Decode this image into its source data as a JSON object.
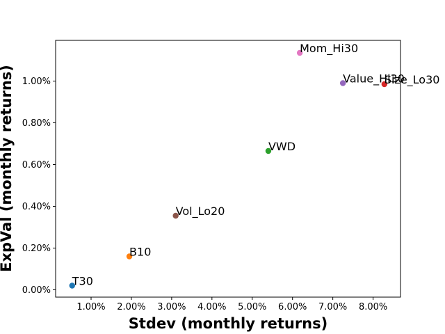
{
  "chart_data": {
    "type": "scatter",
    "title": "",
    "xlabel": "Stdev (monthly returns)",
    "ylabel": "ExpVal (monthly returns)",
    "xlim": [
      0.12,
      8.68
    ],
    "ylim": [
      -0.035,
      1.195
    ],
    "x_ticks": [
      1,
      2,
      3,
      4,
      5,
      6,
      7,
      8
    ],
    "x_tick_labels": [
      "1.00%",
      "2.00%",
      "3.00%",
      "4.00%",
      "5.00%",
      "6.00%",
      "7.00%",
      "8.00%"
    ],
    "y_ticks": [
      0,
      0.2,
      0.4,
      0.6,
      0.8,
      1.0
    ],
    "y_tick_labels": [
      "0.00%",
      "0.20%",
      "0.40%",
      "0.60%",
      "0.80%",
      "1.00%"
    ],
    "grid": false,
    "points": [
      {
        "label": "T30",
        "x": 0.53,
        "y": 0.02,
        "color": "#1f77b4"
      },
      {
        "label": "B10",
        "x": 1.95,
        "y": 0.16,
        "color": "#ff7f0e"
      },
      {
        "label": "VWD",
        "x": 5.4,
        "y": 0.665,
        "color": "#2ca02c"
      },
      {
        "label": "Size_Lo30",
        "x": 8.28,
        "y": 0.985,
        "color": "#d62728"
      },
      {
        "label": "Value_Hi30",
        "x": 7.25,
        "y": 0.99,
        "color": "#9467bd"
      },
      {
        "label": "Vol_Lo20",
        "x": 3.1,
        "y": 0.355,
        "color": "#8c564b"
      },
      {
        "label": "Mom_Hi30",
        "x": 6.18,
        "y": 1.135,
        "color": "#e377c2"
      }
    ]
  }
}
